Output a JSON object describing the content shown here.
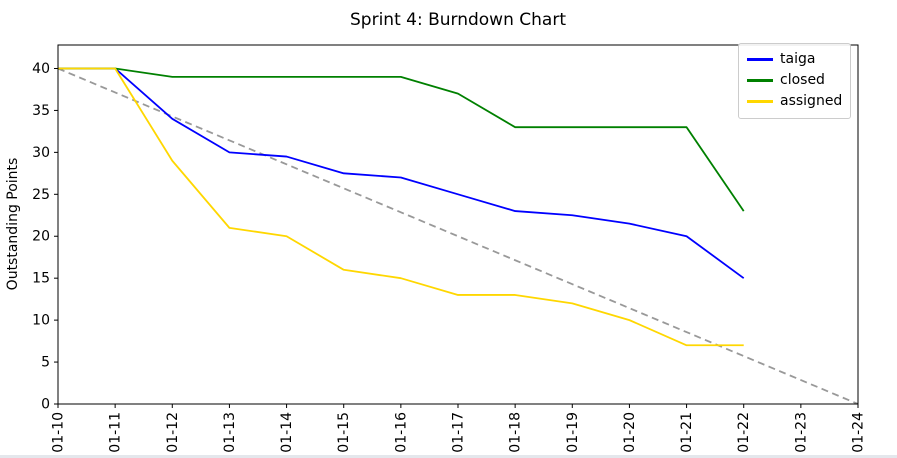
{
  "chart_data": {
    "type": "line",
    "title": "Sprint 4: Burndown Chart",
    "ylabel": "Outstanding Points",
    "xlabel": "",
    "x_ticklabels": [
      "01-10",
      "01-11",
      "01-12",
      "01-13",
      "01-14",
      "01-15",
      "01-16",
      "01-17",
      "01-18",
      "01-19",
      "01-20",
      "01-21",
      "01-22",
      "01-23",
      "01-24"
    ],
    "y_ticks": [
      0,
      5,
      10,
      15,
      20,
      25,
      30,
      35,
      40
    ],
    "ylim": [
      0,
      42.8
    ],
    "grid": false,
    "legend_position": "upper right",
    "series": [
      {
        "name": "taiga",
        "color": "#0000ff",
        "style": "solid",
        "in_legend": true,
        "x": [
          0,
          1,
          2,
          3,
          4,
          5,
          6,
          7,
          8,
          9,
          10,
          11,
          12
        ],
        "values": [
          40,
          40,
          34,
          30,
          29.5,
          27.5,
          27,
          25,
          23,
          22.5,
          21.5,
          20,
          15
        ]
      },
      {
        "name": "closed",
        "color": "#008000",
        "style": "solid",
        "in_legend": true,
        "x": [
          0,
          1,
          2,
          3,
          4,
          5,
          6,
          7,
          8,
          9,
          10,
          11,
          12
        ],
        "values": [
          40,
          40,
          39,
          39,
          39,
          39,
          39,
          37,
          33,
          33,
          33,
          33,
          23
        ]
      },
      {
        "name": "assigned",
        "color": "#ffd700",
        "style": "solid",
        "in_legend": true,
        "x": [
          0,
          1,
          2,
          3,
          4,
          5,
          6,
          7,
          8,
          9,
          10,
          11,
          12
        ],
        "values": [
          40,
          40,
          29,
          21,
          20,
          16,
          15,
          13,
          13,
          12,
          10,
          7,
          7
        ]
      },
      {
        "name": "ideal",
        "color": "#999999",
        "style": "dashed",
        "in_legend": false,
        "x": [
          0,
          14
        ],
        "values": [
          40,
          0
        ]
      }
    ]
  }
}
